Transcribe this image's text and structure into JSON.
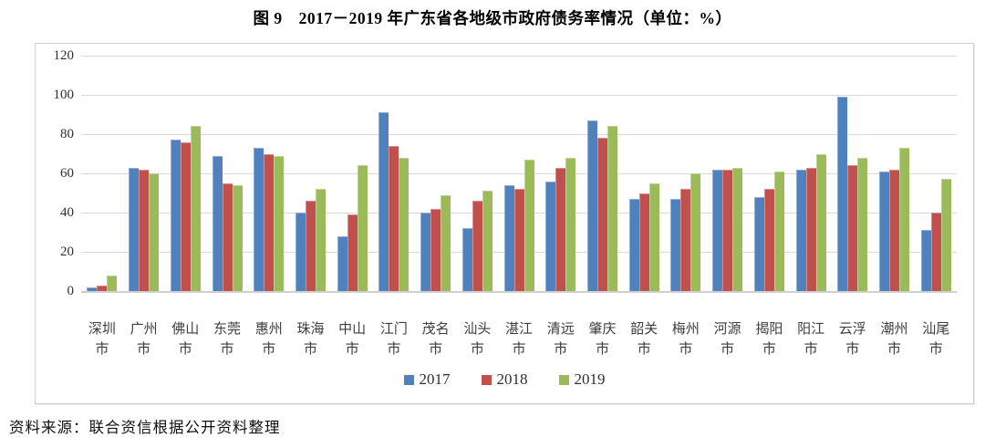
{
  "title": "图 9　2017－2019 年广东省各地级市政府债务率情况（单位：%）",
  "source_note": "资料来源：联合资信根据公开资料整理",
  "chart_data": {
    "type": "bar",
    "title": "图 9　2017－2019 年广东省各地级市政府债务率情况（单位：%）",
    "unit": "%",
    "categories": [
      "深圳市",
      "广州市",
      "佛山市",
      "东莞市",
      "惠州市",
      "珠海市",
      "中山市",
      "江门市",
      "茂名市",
      "汕头市",
      "湛江市",
      "清远市",
      "肇庆市",
      "韶关市",
      "梅州市",
      "河源市",
      "揭阳市",
      "阳江市",
      "云浮市",
      "潮州市",
      "汕尾市"
    ],
    "series": [
      {
        "name": "2017",
        "color": "#4F81BD",
        "values": [
          2,
          63,
          77,
          69,
          73,
          40,
          28,
          91,
          40,
          32,
          54,
          56,
          87,
          47,
          47,
          62,
          48,
          62,
          99,
          61,
          31
        ]
      },
      {
        "name": "2018",
        "color": "#C0504D",
        "values": [
          3,
          62,
          76,
          55,
          70,
          46,
          39,
          74,
          42,
          46,
          52,
          63,
          78,
          50,
          52,
          62,
          52,
          63,
          64,
          62,
          40
        ]
      },
      {
        "name": "2019",
        "color": "#9BBB59",
        "values": [
          8,
          60,
          84,
          54,
          69,
          52,
          64,
          68,
          49,
          51,
          67,
          68,
          84,
          55,
          60,
          63,
          61,
          70,
          68,
          73,
          57
        ]
      }
    ],
    "xlabel": "",
    "ylabel": "",
    "ylim": [
      0,
      120
    ],
    "yticks": [
      0,
      20,
      40,
      60,
      80,
      100,
      120
    ],
    "grid": true,
    "legend_position": "bottom"
  }
}
